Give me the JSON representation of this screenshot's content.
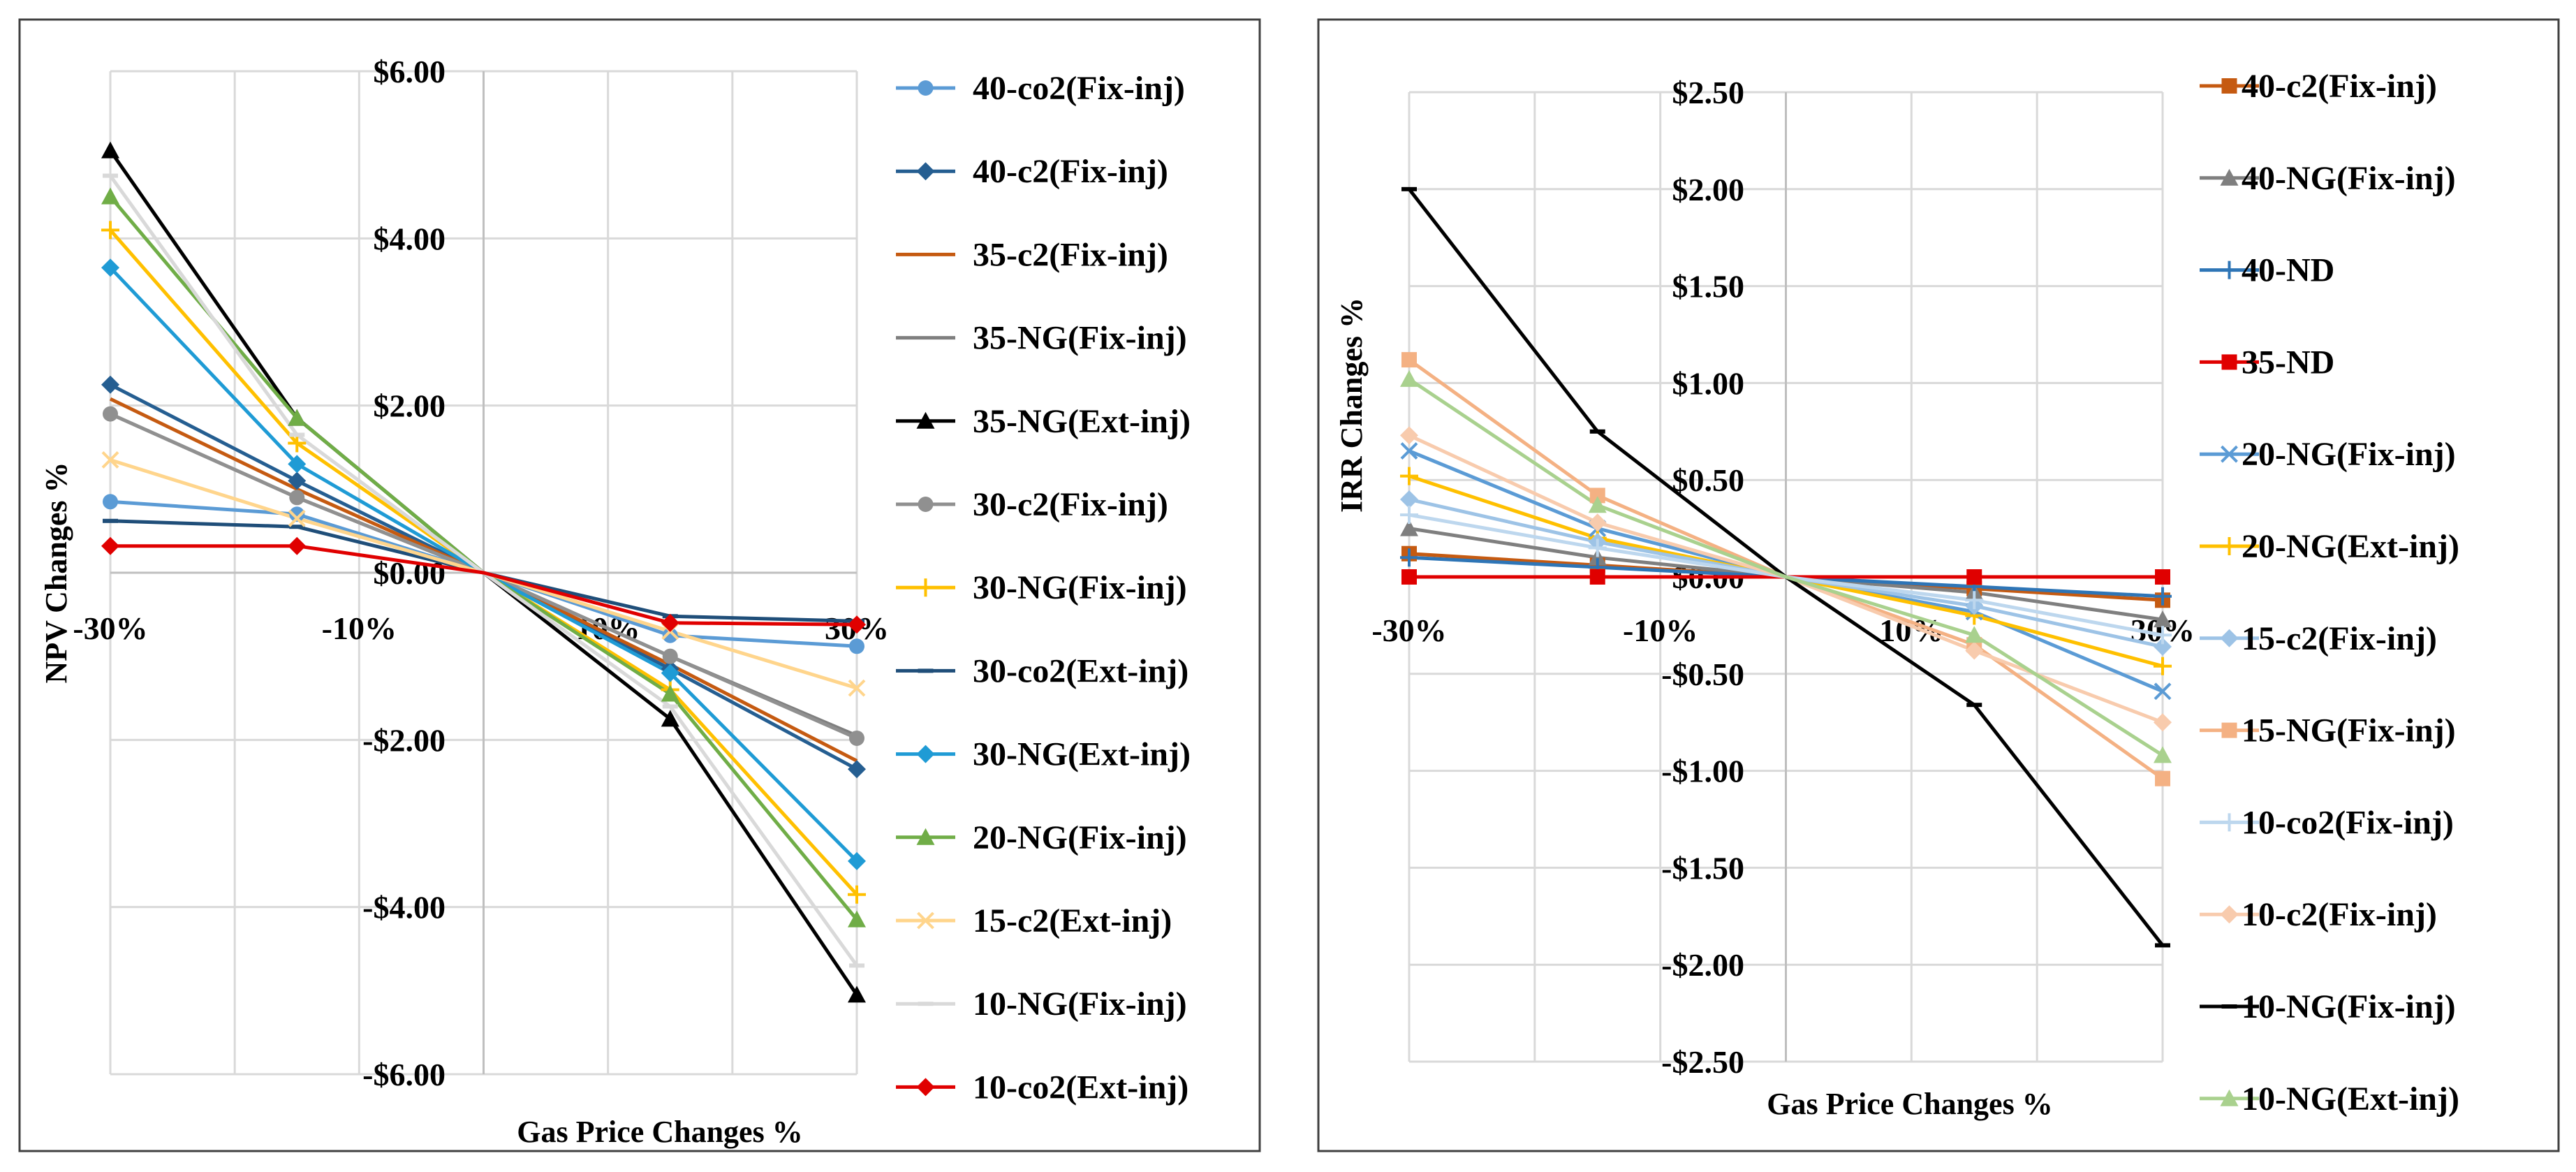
{
  "chart_data": [
    {
      "type": "line",
      "id": "npv",
      "xlabel": "Gas Price Changes %",
      "ylabel": "NPV Changes %",
      "x": [
        -30,
        -15,
        0,
        15,
        30
      ],
      "xlim": [
        -30,
        30
      ],
      "ylim": [
        -6,
        6
      ],
      "x_ticks": [
        -30,
        -20,
        -10,
        0,
        10,
        20,
        30
      ],
      "x_tick_labels": [
        {
          "value": -30,
          "label": "-30%"
        },
        {
          "value": -10,
          "label": "-10%"
        },
        {
          "value": 10,
          "label": "10%"
        },
        {
          "value": 30,
          "label": "30%"
        }
      ],
      "y_ticks": [
        {
          "value": 6,
          "label": "$6.00"
        },
        {
          "value": 4,
          "label": "$4.00"
        },
        {
          "value": 2,
          "label": "$2.00"
        },
        {
          "value": 0,
          "label": "$0.00"
        },
        {
          "value": -2,
          "label": "-$2.00"
        },
        {
          "value": -4,
          "label": "-$4.00"
        },
        {
          "value": -6,
          "label": "-$6.00"
        }
      ],
      "series": [
        {
          "name": "40-co2(Fix-inj)",
          "color": "#5b9bd5",
          "marker": "circle",
          "values": [
            0.85,
            0.7,
            0,
            -0.75,
            -0.88
          ]
        },
        {
          "name": "40-c2(Fix-inj)",
          "color": "#255e91",
          "marker": "diamond",
          "values": [
            2.25,
            1.1,
            0,
            -1.15,
            -2.35
          ]
        },
        {
          "name": "35-c2(Fix-inj)",
          "color": "#c55a11",
          "marker": "none",
          "values": [
            2.08,
            1.0,
            0,
            -1.1,
            -2.25
          ]
        },
        {
          "name": "35-NG(Fix-inj)",
          "color": "#7f7f7f",
          "marker": "none",
          "values": [
            1.9,
            0.9,
            0,
            -1.0,
            -1.95
          ]
        },
        {
          "name": "35-NG(Ext-inj)",
          "color": "#000000",
          "marker": "triangle",
          "values": [
            5.05,
            1.85,
            0,
            -1.75,
            -5.05
          ]
        },
        {
          "name": "30-c2(Fix-inj)",
          "color": "#909090",
          "marker": "circle",
          "values": [
            1.9,
            0.9,
            0,
            -1.0,
            -1.98
          ]
        },
        {
          "name": "30-NG(Fix-inj)",
          "color": "#ffc000",
          "marker": "plus",
          "values": [
            4.1,
            1.55,
            0,
            -1.4,
            -3.85
          ]
        },
        {
          "name": "30-co2(Ext-inj)",
          "color": "#1f4e79",
          "marker": "dash",
          "values": [
            0.62,
            0.55,
            0,
            -0.52,
            -0.58
          ]
        },
        {
          "name": "30-NG(Ext-inj)",
          "color": "#1f9bd5",
          "marker": "diamond",
          "values": [
            3.65,
            1.3,
            0,
            -1.2,
            -3.45
          ]
        },
        {
          "name": "20-NG(Fix-inj)",
          "color": "#70ad47",
          "marker": "triangle",
          "values": [
            4.5,
            1.85,
            0,
            -1.45,
            -4.15
          ]
        },
        {
          "name": "15-c2(Ext-inj)",
          "color": "#ffd58c",
          "marker": "x",
          "values": [
            1.35,
            0.65,
            0,
            -0.7,
            -1.38
          ]
        },
        {
          "name": "10-NG(Fix-inj)",
          "color": "#d9d9d9",
          "marker": "dash",
          "values": [
            4.75,
            1.65,
            0,
            -1.6,
            -4.7
          ]
        },
        {
          "name": "10-co2(Ext-inj)",
          "color": "#e00000",
          "marker": "diamond",
          "values": [
            0.32,
            0.32,
            0,
            -0.6,
            -0.62
          ]
        }
      ]
    },
    {
      "type": "line",
      "id": "irr",
      "xlabel": "Gas Price Changes %",
      "ylabel": "IRR Changes %",
      "x": [
        -30,
        -15,
        0,
        15,
        30
      ],
      "xlim": [
        -30,
        30
      ],
      "ylim": [
        -2.5,
        2.5
      ],
      "x_ticks": [
        -30,
        -20,
        -10,
        0,
        10,
        20,
        30
      ],
      "x_tick_labels": [
        {
          "value": -30,
          "label": "-30%"
        },
        {
          "value": -10,
          "label": "-10%"
        },
        {
          "value": 10,
          "label": "10%"
        },
        {
          "value": 30,
          "label": "30%"
        }
      ],
      "y_ticks": [
        {
          "value": 2.5,
          "label": "$2.50"
        },
        {
          "value": 2.0,
          "label": "$2.00"
        },
        {
          "value": 1.5,
          "label": "$1.50"
        },
        {
          "value": 1.0,
          "label": "$1.00"
        },
        {
          "value": 0.5,
          "label": "$0.50"
        },
        {
          "value": 0,
          "label": "$0.00"
        },
        {
          "value": -0.5,
          "label": "-$0.50"
        },
        {
          "value": -1.0,
          "label": "-$1.00"
        },
        {
          "value": -1.5,
          "label": "-$1.50"
        },
        {
          "value": -2.0,
          "label": "-$2.00"
        },
        {
          "value": -2.5,
          "label": "-$2.50"
        }
      ],
      "series": [
        {
          "name": "40-c2(Fix-inj)",
          "color": "#c55a11",
          "marker": "square",
          "values": [
            0.12,
            0.06,
            0,
            -0.06,
            -0.12
          ]
        },
        {
          "name": "40-NG(Fix-inj)",
          "color": "#7f7f7f",
          "marker": "triangle",
          "values": [
            0.25,
            0.1,
            0,
            -0.08,
            -0.22
          ]
        },
        {
          "name": "40-ND",
          "color": "#2e75b6",
          "marker": "plus",
          "values": [
            0.1,
            0.05,
            0,
            -0.05,
            -0.1
          ]
        },
        {
          "name": "35-ND",
          "color": "#e00000",
          "marker": "square",
          "values": [
            0,
            0,
            0,
            0,
            0
          ]
        },
        {
          "name": "20-NG(Fix-inj)",
          "color": "#5b9bd5",
          "marker": "x",
          "values": [
            0.65,
            0.25,
            0,
            -0.18,
            -0.59
          ]
        },
        {
          "name": "20-NG(Ext-inj)",
          "color": "#ffc000",
          "marker": "plus",
          "values": [
            0.52,
            0.2,
            0,
            -0.2,
            -0.46
          ]
        },
        {
          "name": "15-c2(Fix-inj)",
          "color": "#9dc3e6",
          "marker": "diamond",
          "values": [
            0.4,
            0.18,
            0,
            -0.15,
            -0.36
          ]
        },
        {
          "name": "15-NG(Fix-inj)",
          "color": "#f4b183",
          "marker": "square",
          "values": [
            1.12,
            0.42,
            0,
            -0.35,
            -1.04
          ]
        },
        {
          "name": "10-co2(Fix-inj)",
          "color": "#bdd7ee",
          "marker": "plus",
          "values": [
            0.32,
            0.15,
            0,
            -0.12,
            -0.3
          ]
        },
        {
          "name": "10-c2(Fix-inj)",
          "color": "#f8cbad",
          "marker": "diamond",
          "values": [
            0.73,
            0.28,
            0,
            -0.38,
            -0.75
          ]
        },
        {
          "name": "10-NG(Fix-inj)",
          "color": "#000000",
          "marker": "dash",
          "values": [
            2.0,
            0.75,
            0,
            -0.66,
            -1.9
          ]
        },
        {
          "name": "10-NG(Ext-inj)",
          "color": "#a9d18e",
          "marker": "triangle",
          "values": [
            1.02,
            0.37,
            0,
            -0.3,
            -0.92
          ]
        }
      ]
    }
  ]
}
